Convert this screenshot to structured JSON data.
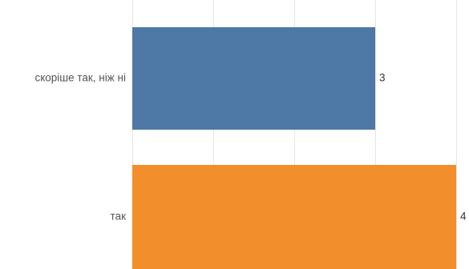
{
  "chart_data": {
    "type": "bar",
    "orientation": "horizontal",
    "categories": [
      "скоріше так, ніж ні",
      "так"
    ],
    "values": [
      3,
      4
    ],
    "value_labels": [
      "3",
      "4"
    ],
    "bar_colors": [
      "#4e79a7",
      "#f28e2b"
    ],
    "xlim": [
      0,
      4
    ],
    "grid": true,
    "legend": "none"
  }
}
